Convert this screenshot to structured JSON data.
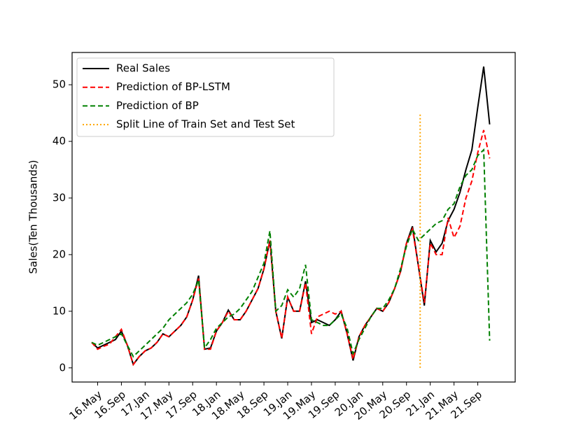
{
  "chart_data": {
    "type": "line",
    "y_label": "Sales(Ten Thousands)",
    "categories": [
      null,
      "16.May",
      null,
      null,
      null,
      "16.Sep",
      null,
      null,
      null,
      "17.Jan",
      null,
      null,
      null,
      "17.May",
      null,
      null,
      null,
      "17.Sep",
      null,
      null,
      null,
      "18.Jan",
      null,
      null,
      null,
      "18.May",
      null,
      null,
      null,
      "18.Sep",
      null,
      null,
      null,
      "19.Jan",
      null,
      null,
      null,
      "19.May",
      null,
      null,
      null,
      "19.Sep",
      null,
      null,
      null,
      "20.Jan",
      null,
      null,
      null,
      "20.May",
      null,
      null,
      null,
      "20.Sep",
      null,
      null,
      null,
      "21.Jan",
      null,
      null,
      null,
      "21.May",
      null,
      null,
      null,
      "21.Sep",
      null,
      null
    ],
    "series": [
      {
        "name": "Real Sales",
        "color": "#000000",
        "dash": "solid",
        "values": [
          4.5,
          3.5,
          4,
          4.5,
          5,
          6.5,
          4,
          0.6,
          2,
          3,
          3.5,
          4.5,
          6,
          5.5,
          6.5,
          7.5,
          9,
          12,
          16.3,
          3.3,
          3.5,
          6.5,
          8,
          10.2,
          8.5,
          8.5,
          10,
          12,
          14,
          17.5,
          22.5,
          10,
          5.2,
          12.5,
          10,
          10,
          15.3,
          8,
          8.5,
          8,
          7.5,
          8.5,
          10,
          6,
          1.3,
          5.5,
          7.5,
          9,
          10.5,
          10,
          11.5,
          14,
          17,
          22,
          25,
          18,
          11,
          22.5,
          20.5,
          22,
          26,
          28,
          31,
          35,
          38.5,
          46,
          53.2,
          43
        ]
      },
      {
        "name": "Prediction of BP-LSTM",
        "color": "#ff0000",
        "dash": "dashed",
        "values": [
          4.5,
          3.3,
          3.8,
          4.2,
          5.5,
          6.8,
          4,
          0.6,
          2,
          3,
          3.5,
          4.5,
          6,
          5.5,
          6.5,
          7.5,
          9,
          12,
          15.8,
          3.3,
          3.3,
          6.5,
          8,
          10,
          8.5,
          8.5,
          10,
          12,
          14,
          17.5,
          22.5,
          10,
          5.2,
          12.5,
          10,
          10,
          15,
          6,
          9,
          9.5,
          10,
          9.5,
          10,
          6,
          1.5,
          5.5,
          7.5,
          9,
          10.5,
          10,
          11.5,
          14,
          17,
          22,
          24.5,
          18,
          11.5,
          22,
          20,
          20,
          26.5,
          23,
          25,
          30,
          33,
          38,
          42,
          37
        ]
      },
      {
        "name": "Prediction of BP",
        "color": "#008000",
        "dash": "dashed",
        "values": [
          4.5,
          4,
          4.5,
          5,
          5.5,
          6,
          4,
          2,
          3,
          4,
          5,
          6,
          7,
          8.5,
          9.5,
          10.5,
          11.5,
          13,
          15.5,
          3.5,
          5,
          7,
          8,
          9,
          9.5,
          10.5,
          12,
          13.5,
          16,
          18.5,
          24.2,
          10,
          11,
          13.8,
          12.5,
          14,
          18.2,
          8.5,
          8,
          7.5,
          7.5,
          8.5,
          9.5,
          7,
          2.5,
          5,
          7,
          9,
          10.5,
          10.5,
          12,
          14,
          17.5,
          21.5,
          24.5,
          22.5,
          23.5,
          24.5,
          25.5,
          26,
          28,
          29,
          32,
          34,
          35,
          37.5,
          38.5,
          4.8
        ]
      }
    ],
    "split": {
      "name": "Split Line of Train Set and Test Set",
      "color": "#ffa500",
      "x": 55.3,
      "y": [
        0,
        45
      ]
    },
    "ylim": [
      -2.5,
      55.7
    ],
    "yticks": [
      0,
      10,
      20,
      30,
      40,
      50
    ],
    "legend": "upper left"
  }
}
